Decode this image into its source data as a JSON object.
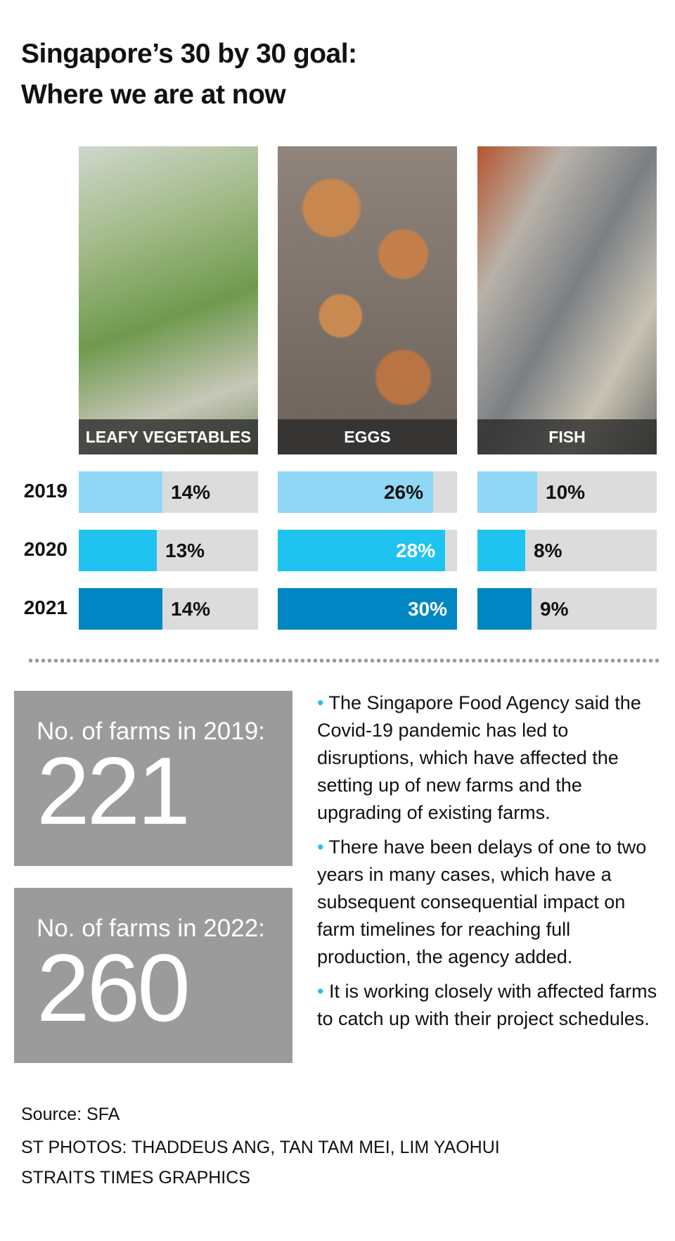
{
  "title": {
    "line1": "Singapore’s 30 by 30 goal:",
    "line2": "Where we are at now"
  },
  "chart_data": {
    "type": "bar",
    "title": "Singapore’s 30 by 30 goal: Where we are at now",
    "categories": [
      "2019",
      "2020",
      "2021"
    ],
    "max": 30,
    "series": [
      {
        "name": "LEAFY VEGETABLES",
        "values": [
          14,
          13,
          14
        ],
        "labels": [
          "14%",
          "13%",
          "14%"
        ]
      },
      {
        "name": "EGGS",
        "values": [
          26,
          28,
          30
        ],
        "labels": [
          "26%",
          "28%",
          "30%"
        ]
      },
      {
        "name": "FISH",
        "values": [
          10,
          8,
          9
        ],
        "labels": [
          "10%",
          "8%",
          "9%"
        ]
      }
    ],
    "colors": [
      "#8fd7f5",
      "#1ec3f0",
      "#0086c2"
    ],
    "track_color": "#dcdcdd"
  },
  "farms": [
    {
      "label": "No. of farms in 2019:",
      "value": "221"
    },
    {
      "label": "No. of farms in 2022:",
      "value": "260"
    }
  ],
  "bullet": "•",
  "notes": [
    "The Singapore Food Agency said the Covid-19 pandemic has led to disruptions, which have affected the setting up of new farms and the upgrading of existing farms.",
    "There have been delays of one to two years in many cases, which have a subsequent consequential impact on farm timelines for reaching full production, the agency added.",
    "It is working closely with affected farms to catch up with their project schedules."
  ],
  "credits": [
    "Source: SFA",
    "ST PHOTOS: THADDEUS ANG, TAN TAM MEI, LIM YAOHUI",
    "STRAITS TIMES GRAPHICS"
  ]
}
